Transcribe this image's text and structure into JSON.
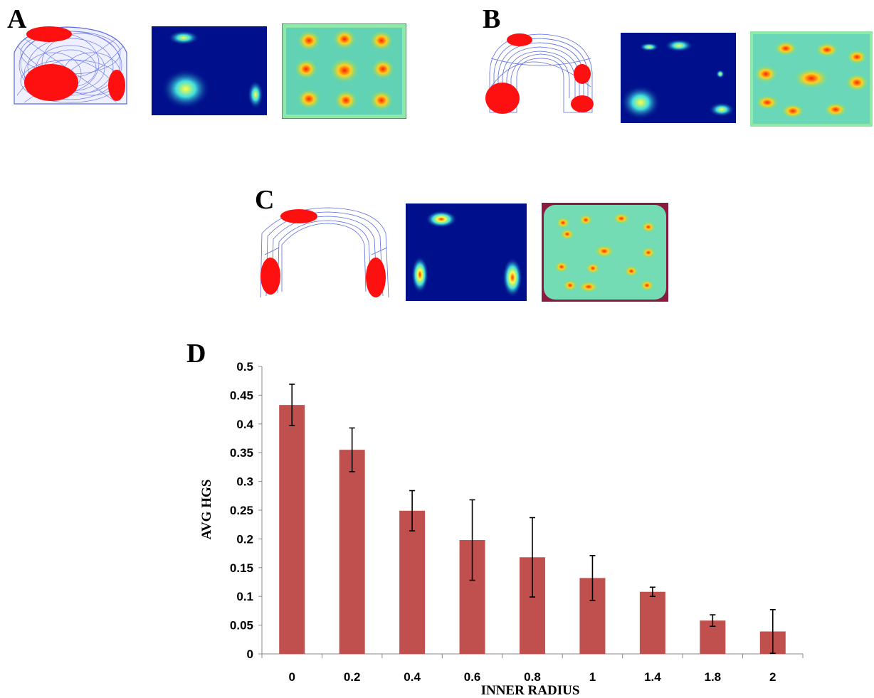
{
  "panels": {
    "a": {
      "letter": "A"
    },
    "b": {
      "letter": "B"
    },
    "c": {
      "letter": "C"
    },
    "d": {
      "letter": "D"
    }
  },
  "colors": {
    "trajectory": "#5a6ae0",
    "spikes": "#ff1010",
    "rate_bg": "#00108c",
    "bar": "#c0504d",
    "error": "#000000"
  },
  "chart_data": {
    "type": "bar",
    "categories": [
      "0",
      "0.2",
      "0.4",
      "0.6",
      "0.8",
      "1",
      "1.4",
      "1.8",
      "2"
    ],
    "values": [
      0.433,
      0.355,
      0.249,
      0.198,
      0.168,
      0.132,
      0.108,
      0.058,
      0.039
    ],
    "errors": [
      0.036,
      0.038,
      0.035,
      0.07,
      0.069,
      0.039,
      0.008,
      0.01,
      0.038
    ],
    "xlabel": "INNER RADIUS",
    "ylabel": "AVG HGS",
    "ylim": [
      0,
      0.5
    ],
    "yticks": [
      "0",
      "0.05",
      "0.1",
      "0.15",
      "0.2",
      "0.25",
      "0.3",
      "0.35",
      "0.4",
      "0.45",
      "0.5"
    ],
    "grid": false,
    "legend": "none"
  }
}
